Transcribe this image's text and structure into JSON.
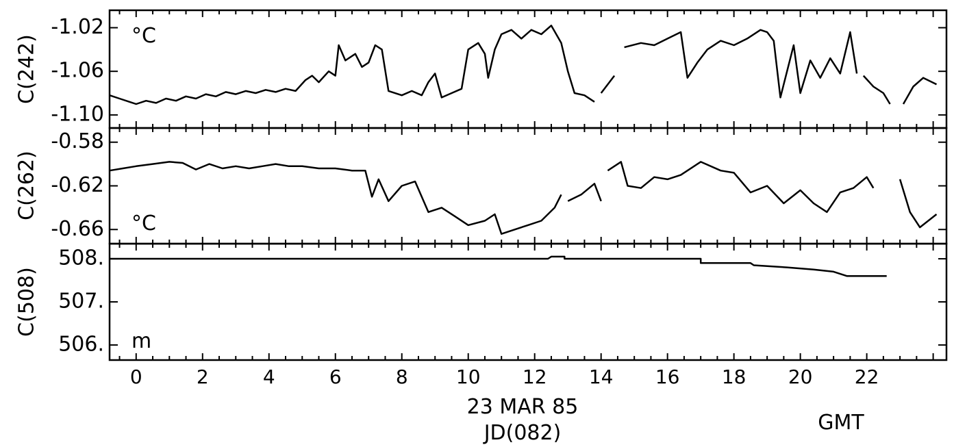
{
  "chart_data": [
    {
      "type": "line",
      "ylabel": "C(242)",
      "unit": "°C",
      "ylim": [
        -1.112,
        -1.004
      ],
      "yticks": [
        -1.02,
        -1.06,
        -1.1
      ],
      "ytick_labels": [
        "-1.02",
        "-1.06",
        "-1.10"
      ],
      "series": [
        {
          "segments": [
            [
              [
                -0.8,
                -1.082
              ],
              [
                -0.5,
                -1.085
              ],
              [
                -0.2,
                -1.088
              ],
              [
                0.0,
                -1.09
              ],
              [
                0.3,
                -1.087
              ],
              [
                0.6,
                -1.089
              ],
              [
                0.9,
                -1.085
              ],
              [
                1.2,
                -1.087
              ],
              [
                1.5,
                -1.083
              ],
              [
                1.8,
                -1.085
              ],
              [
                2.1,
                -1.081
              ],
              [
                2.4,
                -1.083
              ],
              [
                2.7,
                -1.079
              ],
              [
                3.0,
                -1.081
              ],
              [
                3.3,
                -1.078
              ],
              [
                3.6,
                -1.08
              ],
              [
                3.9,
                -1.077
              ],
              [
                4.2,
                -1.079
              ],
              [
                4.5,
                -1.076
              ],
              [
                4.8,
                -1.078
              ],
              [
                5.1,
                -1.068
              ],
              [
                5.3,
                -1.064
              ],
              [
                5.5,
                -1.07
              ],
              [
                5.8,
                -1.06
              ],
              [
                6.0,
                -1.064
              ],
              [
                6.1,
                -1.036
              ],
              [
                6.3,
                -1.05
              ],
              [
                6.6,
                -1.044
              ],
              [
                6.8,
                -1.056
              ],
              [
                7.0,
                -1.052
              ],
              [
                7.2,
                -1.036
              ],
              [
                7.4,
                -1.04
              ],
              [
                7.6,
                -1.078
              ],
              [
                8.0,
                -1.082
              ],
              [
                8.3,
                -1.078
              ],
              [
                8.6,
                -1.082
              ],
              [
                8.8,
                -1.07
              ],
              [
                9.0,
                -1.062
              ],
              [
                9.2,
                -1.084
              ],
              [
                9.5,
                -1.08
              ],
              [
                9.8,
                -1.076
              ],
              [
                10.0,
                -1.04
              ],
              [
                10.3,
                -1.034
              ],
              [
                10.5,
                -1.044
              ],
              [
                10.6,
                -1.066
              ],
              [
                10.8,
                -1.04
              ],
              [
                11.0,
                -1.026
              ],
              [
                11.3,
                -1.022
              ],
              [
                11.6,
                -1.03
              ],
              [
                11.9,
                -1.022
              ],
              [
                12.2,
                -1.026
              ],
              [
                12.5,
                -1.018
              ],
              [
                12.8,
                -1.034
              ],
              [
                13.0,
                -1.06
              ],
              [
                13.2,
                -1.08
              ],
              [
                13.5,
                -1.082
              ],
              [
                13.8,
                -1.088
              ]
            ],
            [
              [
                14.0,
                -1.08
              ],
              [
                14.4,
                -1.064
              ]
            ],
            [
              [
                14.7,
                -1.038
              ],
              [
                15.2,
                -1.034
              ],
              [
                15.6,
                -1.036
              ],
              [
                16.0,
                -1.03
              ],
              [
                16.4,
                -1.024
              ],
              [
                16.6,
                -1.066
              ],
              [
                16.9,
                -1.052
              ],
              [
                17.2,
                -1.04
              ],
              [
                17.6,
                -1.032
              ],
              [
                18.0,
                -1.036
              ],
              [
                18.4,
                -1.03
              ],
              [
                18.8,
                -1.022
              ],
              [
                19.0,
                -1.024
              ],
              [
                19.2,
                -1.032
              ],
              [
                19.4,
                -1.084
              ],
              [
                19.6,
                -1.06
              ],
              [
                19.8,
                -1.036
              ],
              [
                20.0,
                -1.08
              ],
              [
                20.3,
                -1.05
              ],
              [
                20.6,
                -1.066
              ],
              [
                20.9,
                -1.048
              ],
              [
                21.2,
                -1.062
              ],
              [
                21.5,
                -1.024
              ],
              [
                21.7,
                -1.062
              ]
            ],
            [
              [
                21.9,
                -1.064
              ],
              [
                22.2,
                -1.074
              ],
              [
                22.5,
                -1.08
              ],
              [
                22.7,
                -1.09
              ]
            ],
            [
              [
                23.1,
                -1.09
              ],
              [
                23.4,
                -1.074
              ],
              [
                23.7,
                -1.066
              ],
              [
                24.1,
                -1.072
              ]
            ]
          ]
        }
      ]
    },
    {
      "type": "line",
      "ylabel": "C(262)",
      "unit": "°C",
      "ylim": [
        -0.673,
        -0.567
      ],
      "yticks": [
        -0.58,
        -0.62,
        -0.66
      ],
      "ytick_labels": [
        "-0.58",
        "-0.62",
        "-0.66"
      ],
      "series": [
        {
          "segments": [
            [
              [
                -0.8,
                -0.606
              ],
              [
                -0.4,
                -0.604
              ],
              [
                0.0,
                -0.602
              ],
              [
                0.5,
                -0.6
              ],
              [
                1.0,
                -0.598
              ],
              [
                1.4,
                -0.599
              ],
              [
                1.8,
                -0.605
              ],
              [
                2.2,
                -0.6
              ],
              [
                2.6,
                -0.604
              ],
              [
                3.0,
                -0.602
              ],
              [
                3.4,
                -0.604
              ],
              [
                3.8,
                -0.602
              ],
              [
                4.2,
                -0.6
              ],
              [
                4.6,
                -0.602
              ],
              [
                5.0,
                -0.602
              ],
              [
                5.5,
                -0.604
              ],
              [
                6.0,
                -0.604
              ],
              [
                6.5,
                -0.606
              ],
              [
                6.9,
                -0.606
              ],
              [
                7.1,
                -0.63
              ],
              [
                7.3,
                -0.614
              ],
              [
                7.6,
                -0.634
              ],
              [
                8.0,
                -0.62
              ],
              [
                8.4,
                -0.616
              ],
              [
                8.8,
                -0.644
              ],
              [
                9.2,
                -0.64
              ],
              [
                9.6,
                -0.648
              ],
              [
                10.0,
                -0.656
              ],
              [
                10.5,
                -0.652
              ],
              [
                10.8,
                -0.646
              ],
              [
                11.0,
                -0.664
              ],
              [
                11.4,
                -0.66
              ],
              [
                11.8,
                -0.656
              ],
              [
                12.2,
                -0.652
              ],
              [
                12.6,
                -0.64
              ],
              [
                12.8,
                -0.628
              ]
            ],
            [
              [
                13.0,
                -0.634
              ],
              [
                13.4,
                -0.628
              ],
              [
                13.8,
                -0.618
              ],
              [
                14.0,
                -0.634
              ]
            ],
            [
              [
                14.2,
                -0.606
              ],
              [
                14.6,
                -0.598
              ],
              [
                14.8,
                -0.62
              ],
              [
                15.2,
                -0.622
              ],
              [
                15.6,
                -0.612
              ],
              [
                16.0,
                -0.614
              ],
              [
                16.4,
                -0.61
              ],
              [
                17.0,
                -0.598
              ],
              [
                17.6,
                -0.606
              ],
              [
                18.0,
                -0.608
              ],
              [
                18.5,
                -0.626
              ],
              [
                19.0,
                -0.62
              ],
              [
                19.5,
                -0.636
              ],
              [
                20.0,
                -0.624
              ],
              [
                20.4,
                -0.636
              ],
              [
                20.8,
                -0.644
              ],
              [
                21.2,
                -0.626
              ],
              [
                21.6,
                -0.622
              ],
              [
                22.0,
                -0.612
              ],
              [
                22.2,
                -0.622
              ]
            ],
            [
              [
                23.0,
                -0.614
              ],
              [
                23.3,
                -0.644
              ],
              [
                23.6,
                -0.658
              ],
              [
                24.1,
                -0.646
              ]
            ]
          ]
        }
      ]
    },
    {
      "type": "line",
      "ylabel": "C(508)",
      "unit": "m",
      "ylim": [
        505.65,
        508.35
      ],
      "yticks": [
        508,
        507,
        506
      ],
      "ytick_labels": [
        "508.",
        "507.",
        "506."
      ],
      "series": [
        {
          "segments": [
            [
              [
                -0.8,
                508.0
              ],
              [
                12.4,
                508.0
              ],
              [
                12.5,
                508.05
              ],
              [
                12.9,
                508.05
              ],
              [
                12.9,
                508.0
              ],
              [
                17.0,
                508.0
              ],
              [
                17.0,
                507.9
              ],
              [
                18.5,
                507.9
              ],
              [
                18.6,
                507.85
              ],
              [
                19.6,
                507.8
              ],
              [
                20.4,
                507.75
              ],
              [
                21.0,
                507.7
              ],
              [
                21.4,
                507.6
              ],
              [
                22.6,
                507.6
              ]
            ]
          ]
        }
      ]
    }
  ],
  "x_axis": {
    "ticks": [
      0,
      2,
      4,
      6,
      8,
      10,
      12,
      14,
      16,
      18,
      20,
      22
    ],
    "tick_labels": [
      "0",
      "2",
      "4",
      "6",
      "8",
      "10",
      "12",
      "14",
      "16",
      "18",
      "20",
      "22"
    ],
    "xlim": [
      -0.8,
      24.4
    ],
    "date_label": "23 MAR 85",
    "julian_day_label": "JD(082)",
    "timezone_label": "GMT"
  }
}
